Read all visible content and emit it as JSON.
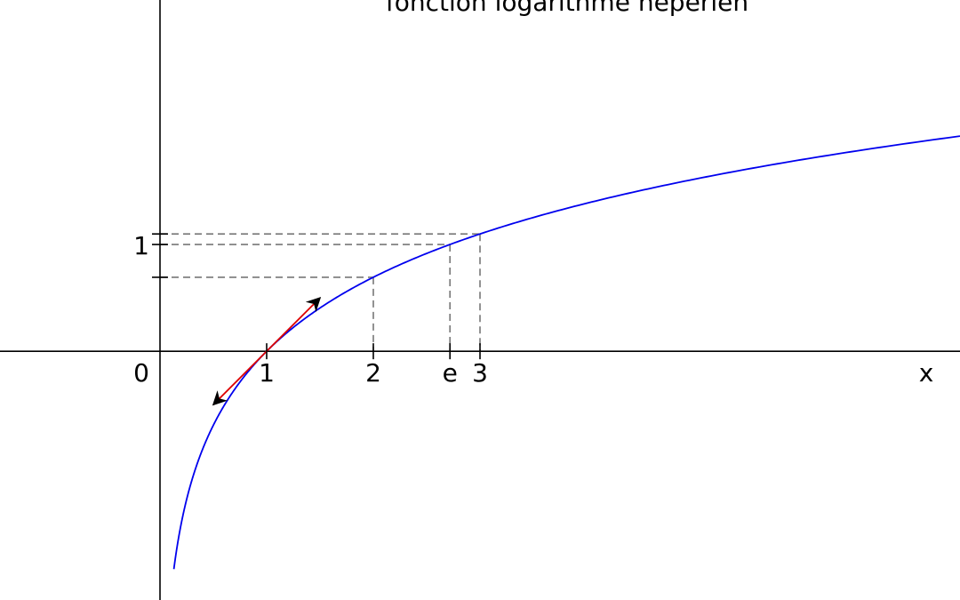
{
  "chart_data": {
    "type": "line",
    "title": "fonction logarithme népérien",
    "xlabel": "x",
    "ylabel": "",
    "xlim": [
      -1.5,
      7.5
    ],
    "ylim": [
      -2.33,
      3.29
    ],
    "x_ticks": [
      {
        "value": 1,
        "label": "1"
      },
      {
        "value": 2,
        "label": "2"
      },
      {
        "value": 2.718281828,
        "label": "e"
      },
      {
        "value": 3,
        "label": "3"
      }
    ],
    "y_ticks": [
      {
        "value": 0.6931,
        "label": ""
      },
      {
        "value": 1,
        "label": "1"
      },
      {
        "value": 1.0986,
        "label": ""
      }
    ],
    "origin_label": "0",
    "series": [
      {
        "function": "ln(x)",
        "color": "#0000ee",
        "x_start": 0.13,
        "x_end": 7.5
      }
    ],
    "guide_points": [
      {
        "x": 2,
        "y": 0.6931
      },
      {
        "x": 2.718281828,
        "y": 1
      },
      {
        "x": 3,
        "y": 1.0986
      }
    ],
    "tangent": {
      "at_x": 1,
      "slope": 1,
      "x_from": 0.5,
      "x_to": 1.5,
      "color": "#dd0000"
    },
    "colors": {
      "axis": "#000000",
      "guide": "#777777"
    }
  }
}
